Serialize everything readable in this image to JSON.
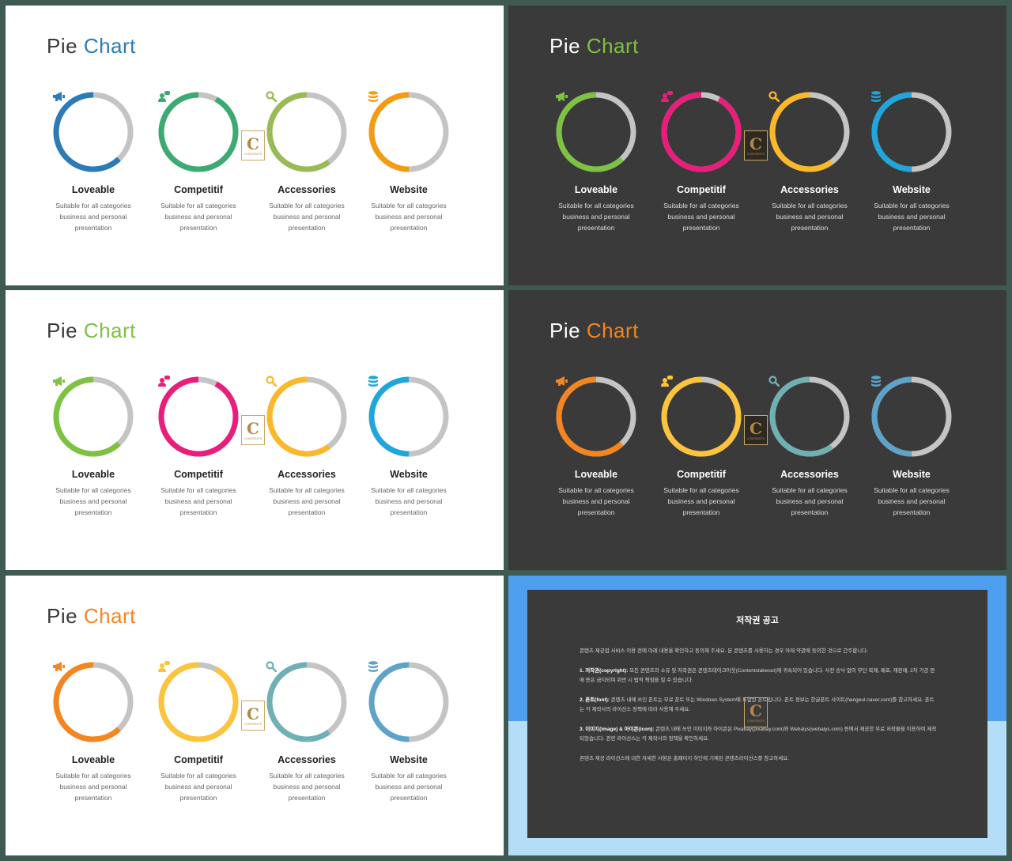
{
  "slides": [
    {
      "theme": "light",
      "title_word1": "Pie",
      "title_word2": "Chart",
      "title_accent": "#2c7bb6",
      "items": [
        {
          "label": "Loveable",
          "desc": "Suitable for all categories business and personal presentation",
          "icon": "megaphone-icon",
          "color": "#2c7bb6",
          "percent": 62
        },
        {
          "label": "Competitif",
          "desc": "Suitable for all categories business and personal presentation",
          "icon": "user-chat-icon",
          "color": "#3daa72",
          "percent": 92
        },
        {
          "label": "Accessories",
          "desc": "Suitable for all categories business and personal presentation",
          "icon": "search-icon",
          "color": "#99bb55",
          "percent": 60
        },
        {
          "label": "Website",
          "desc": "Suitable for all categories business and personal presentation",
          "icon": "database-icon",
          "color": "#f39c12",
          "percent": 50
        }
      ]
    },
    {
      "theme": "dark",
      "title_word1": "Pie",
      "title_word2": "Chart",
      "title_accent": "#7dc242",
      "items": [
        {
          "label": "Loveable",
          "desc": "Suitable for all categories business and personal presentation",
          "icon": "megaphone-icon",
          "color": "#7dc242",
          "percent": 62
        },
        {
          "label": "Competitif",
          "desc": "Suitable for all categories business and personal presentation",
          "icon": "user-chat-icon",
          "color": "#e91e7c",
          "percent": 92
        },
        {
          "label": "Accessories",
          "desc": "Suitable for all categories business and personal presentation",
          "icon": "search-icon",
          "color": "#fbb829",
          "percent": 60
        },
        {
          "label": "Website",
          "desc": "Suitable for all categories business and personal presentation",
          "icon": "database-icon",
          "color": "#1ea6dd",
          "percent": 50
        }
      ]
    },
    {
      "theme": "light",
      "title_word1": "Pie",
      "title_word2": "Chart",
      "title_accent": "#7dc242",
      "items": [
        {
          "label": "Loveable",
          "desc": "Suitable for all categories business and personal presentation",
          "icon": "megaphone-icon",
          "color": "#7dc242",
          "percent": 62
        },
        {
          "label": "Competitif",
          "desc": "Suitable for all categories business and personal presentation",
          "icon": "user-chat-icon",
          "color": "#e91e7c",
          "percent": 92
        },
        {
          "label": "Accessories",
          "desc": "Suitable for all categories business and personal presentation",
          "icon": "search-icon",
          "color": "#fbb829",
          "percent": 60
        },
        {
          "label": "Website",
          "desc": "Suitable for all categories business and personal presentation",
          "icon": "database-icon",
          "color": "#1ea6dd",
          "percent": 50
        }
      ]
    },
    {
      "theme": "dark",
      "title_word1": "Pie",
      "title_word2": "Chart",
      "title_accent": "#f5851f",
      "items": [
        {
          "label": "Loveable",
          "desc": "Suitable for all categories business and personal presentation",
          "icon": "megaphone-icon",
          "color": "#f5851f",
          "percent": 62
        },
        {
          "label": "Competitif",
          "desc": "Suitable for all categories business and personal presentation",
          "icon": "user-chat-icon",
          "color": "#fcc43d",
          "percent": 92
        },
        {
          "label": "Accessories",
          "desc": "Suitable for all categories business and personal presentation",
          "icon": "search-icon",
          "color": "#6fb0b2",
          "percent": 60
        },
        {
          "label": "Website",
          "desc": "Suitable for all categories business and personal presentation",
          "icon": "database-icon",
          "color": "#5fa3c9",
          "percent": 50
        }
      ]
    },
    {
      "theme": "light",
      "title_word1": "Pie",
      "title_word2": "Chart",
      "title_accent": "#f5851f",
      "items": [
        {
          "label": "Loveable",
          "desc": "Suitable for all categories business and personal presentation",
          "icon": "megaphone-icon",
          "color": "#f5851f",
          "percent": 62
        },
        {
          "label": "Competitif",
          "desc": "Suitable for all categories business and personal presentation",
          "icon": "user-chat-icon",
          "color": "#fcc43d",
          "percent": 92
        },
        {
          "label": "Accessories",
          "desc": "Suitable for all categories business and personal presentation",
          "icon": "search-icon",
          "color": "#6fb0b2",
          "percent": 60
        },
        {
          "label": "Website",
          "desc": "Suitable for all categories business and personal presentation",
          "icon": "database-icon",
          "color": "#5fa3c9",
          "percent": 50
        }
      ]
    }
  ],
  "remainder_color": "#c4c4c4",
  "logo": {
    "letter": "C",
    "text": "CONTENTS"
  },
  "notice": {
    "title": "저작권 공고",
    "intro": "콘텐츠 제공업 서비스 이용 전에 아래 내용을 확인하고 동의해 주세요. 본 콘텐츠를 사용하는 경우 아래 약관에 동의한 것으로 간주합니다.",
    "p1_head": "1. 저작권(copyright):",
    "p1": "모든 콘텐츠의 소유 및 저작권은 콘텐츠테이크아웃(Contentstakeout)에 귀속되어 있습니다. 사전 승낙 없이 무단 복제, 배포, 재판매, 2차 가공 판매 등은 금지되며 위반 시 법적 책임을 질 수 있습니다.",
    "p2_head": "2. 폰트(font):",
    "p2": "콘텐츠 내에 쓰인 폰트는 무료 폰트 또는 Windows System에 포함된 폰트입니다. 폰트 정보는 한글폰트 사이트(hangeul.naver.com)를 참고하세요. 폰트는 각 제작사의 라이선스 정책에 따라 사용해 주세요.",
    "p3_head": "3. 이미지(image) & 아이콘(icon):",
    "p3": "콘텐츠 내에 쓰인 이미지와 아이콘은 Pixabay(pixabay.com)와 Webalys(webalys.com) 등에서 제공한 무료 저작물을 이용하여 제작되었습니다. 관련 라이선스는 각 제작사의 정책을 확인하세요.",
    "outro": "콘텐츠 제공 라이선스에 대한 자세한 사항은 홈페이지 하단에 기재된 콘텐츠라이선스를 참고하세요."
  }
}
